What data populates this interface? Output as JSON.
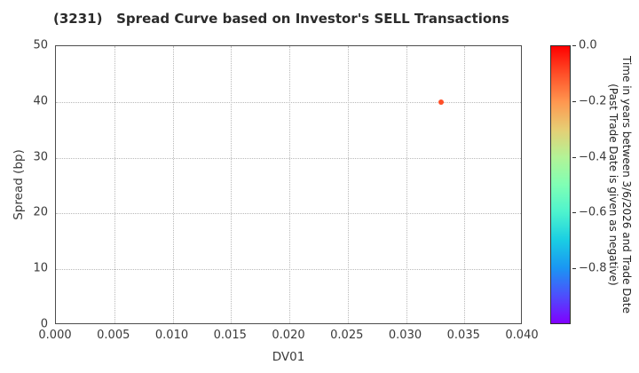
{
  "title": "(3231)   Spread Curve based on Investor's SELL Transactions",
  "colors": {
    "background": "#ffffff",
    "axis": "#4d4d4d",
    "grid": "#b9b9b9",
    "text": "#3a3a3a",
    "point": "#ff4f28"
  },
  "chart_data": {
    "type": "scatter",
    "title": "(3231)   Spread Curve based on Investor's SELL Transactions",
    "xlabel": "DV01",
    "ylabel": "Spread (bp)",
    "xlim": [
      0.0,
      0.04
    ],
    "ylim": [
      0,
      50
    ],
    "grid": "dotted",
    "legend": "none",
    "xticks": {
      "values": [
        0.0,
        0.005,
        0.01,
        0.015,
        0.02,
        0.025,
        0.03,
        0.035,
        0.04
      ],
      "labels": [
        "0.000",
        "0.005",
        "0.010",
        "0.015",
        "0.020",
        "0.025",
        "0.030",
        "0.035",
        "0.040"
      ]
    },
    "yticks": {
      "values": [
        0,
        10,
        20,
        30,
        40,
        50
      ],
      "labels": [
        "0",
        "10",
        "20",
        "30",
        "40",
        "50"
      ]
    },
    "points": [
      {
        "x": 0.033,
        "y": 40,
        "color": "#ff4f28",
        "color_value": -0.1
      }
    ],
    "colorbar": {
      "label": "Time in years between 3/6/2026 and Trade Date\n(Past Trade Date is given as negative)",
      "range": [
        -1.0,
        0.0
      ],
      "ticks": {
        "values": [
          0.0,
          -0.2,
          -0.4,
          -0.6,
          -0.8
        ],
        "labels": [
          "0.0",
          "−0.2",
          "−0.4",
          "−0.6",
          "−0.8"
        ]
      },
      "colormap": "rainbow (reversed top-to-bottom)",
      "gradient_top_to_bottom": [
        "#ff0000",
        "#ff4f28",
        "#ff964f",
        "#e6ce74",
        "#b3f396",
        "#80ffb4",
        "#4df3ce",
        "#1acee3",
        "#1a96f3",
        "#4d4ffc",
        "#8000ff"
      ]
    }
  }
}
